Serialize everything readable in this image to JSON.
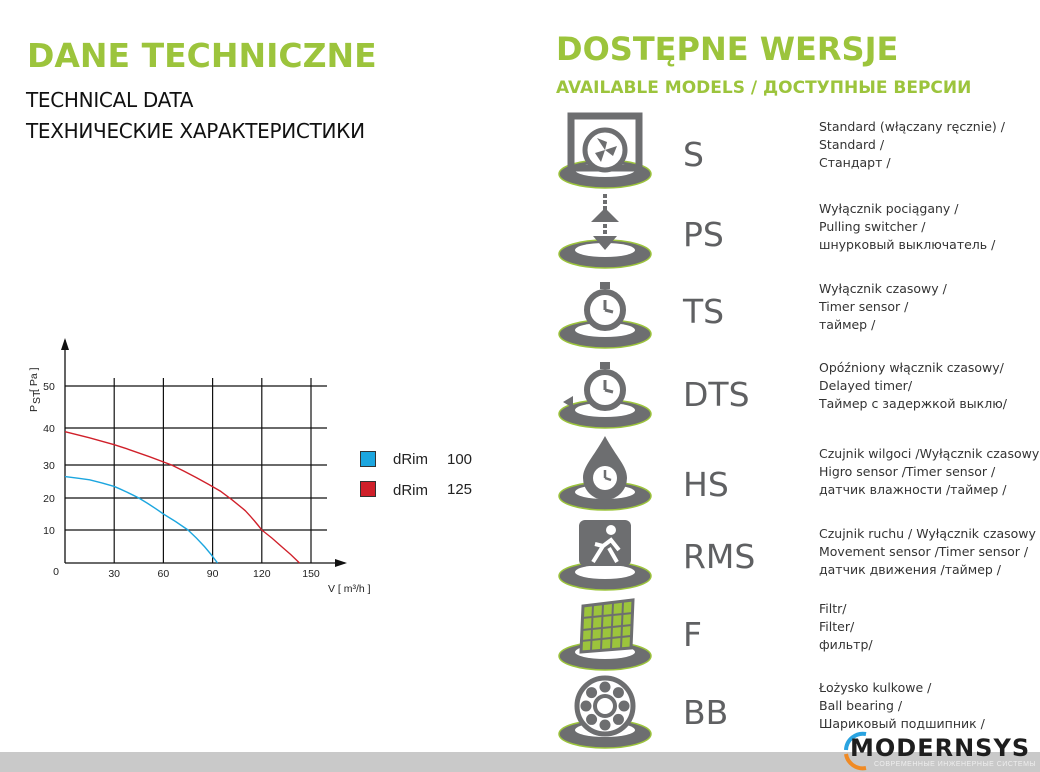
{
  "left": {
    "title": "DANE TECHNICZNE",
    "subtitle_en": "TECHNICAL DATA",
    "subtitle_ru": "ТЕХНИЧЕСКИЕ ХАРАКТЕРИСТИКИ"
  },
  "right": {
    "title": "DOSTĘPNE WERSJE",
    "subtitle": "AVAILABLE MODELS / ДОСТУПНЫЕ ВЕРСИИ",
    "models": [
      {
        "code": "S",
        "icon": "fan-icon",
        "lines": [
          "Standard (włączany ręcznie) /",
          "Standard /",
          "Стандарт /"
        ]
      },
      {
        "code": "PS",
        "icon": "pull-cord-icon",
        "lines": [
          "Wyłącznik pociągany /",
          "Pulling switcher /",
          "шнурковый выключатель /"
        ]
      },
      {
        "code": "TS",
        "icon": "stopwatch-icon",
        "lines": [
          "Wyłącznik czasowy /",
          "Timer sensor /",
          "таймер /"
        ]
      },
      {
        "code": "DTS",
        "icon": "delayed-timer-icon",
        "lines": [
          "Opóźniony włącznik czasowy/",
          "Delayed timer/",
          "Таймер с задержкой выклю/"
        ]
      },
      {
        "code": "HS",
        "icon": "humidity-timer-icon",
        "lines": [
          "Czujnik wilgoci /Wyłącznik czasowy /",
          "Higro sensor /Timer sensor /",
          "датчик влажности /таймер /"
        ]
      },
      {
        "code": "RMS",
        "icon": "motion-sensor-icon",
        "lines": [
          "Czujnik ruchu / Wyłącznik czasowy /",
          "Movement sensor /Timer sensor /",
          "датчик движения /таймер /"
        ]
      },
      {
        "code": "F",
        "icon": "filter-icon",
        "lines": [
          "Filtr/",
          "Filter/",
          "фильтр/"
        ]
      },
      {
        "code": "BB",
        "icon": "ball-bearing-icon",
        "lines": [
          "Łożysko kulkowe /",
          "Ball bearing /",
          "Шариковый подшипник /"
        ]
      }
    ]
  },
  "logo": {
    "text": "MODERNSYS",
    "tagline": "СОВРЕМЕННЫЕ ИНЖЕНЕРНЫЕ СИСТЕМЫ"
  },
  "colors": {
    "accent": "#9cc43c",
    "icon_gray": "#6d6e70",
    "series_100": "#1ca6df",
    "series_125": "#d0202a"
  },
  "chart_data": {
    "type": "line",
    "title": "",
    "xlabel": "V [ m³/h ]",
    "ylabel_main": "P",
    "ylabel_sub": "ST",
    "ylabel_unit": "[ Pa ]",
    "xlim": [
      0,
      150
    ],
    "ylim": [
      0,
      50
    ],
    "origin_label": "0",
    "x_ticks": [
      30,
      60,
      90,
      120,
      150
    ],
    "y_ticks": [
      10,
      20,
      30,
      40,
      50
    ],
    "grid": true,
    "legend_position": "right",
    "series": [
      {
        "name": "dRim",
        "size": "100",
        "color": "#1ca6df",
        "x": [
          0,
          15,
          30,
          45,
          60,
          75,
          85,
          93
        ],
        "y": [
          26.5,
          25.5,
          23.5,
          20,
          15,
          10,
          5,
          0
        ]
      },
      {
        "name": "dRim",
        "size": "125",
        "color": "#d0202a",
        "x": [
          0,
          30,
          65,
          95,
          110,
          120,
          132,
          143
        ],
        "y": [
          39,
          35.5,
          30,
          22,
          16,
          10,
          5,
          0
        ]
      }
    ]
  }
}
